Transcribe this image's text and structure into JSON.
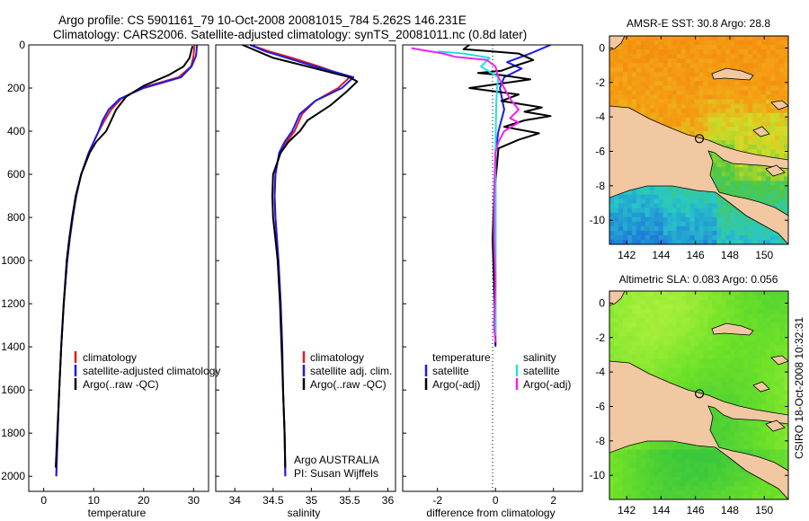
{
  "title": {
    "line1": "Argo profile: CS 5901161_79 10-Oct-2008 20081015_784 5.262S 146.231E",
    "line2": "Climatology: CARS2006. Satellite-adjusted climatology: synTS_20081011.nc (0.8d later)"
  },
  "side_stamp": "CSIRO 18-Oct-2008 10:32:31",
  "colors": {
    "climatology": "#e41a1c",
    "satellite": "#1a1aee",
    "argo": "#000000",
    "satellite_s": "#22e0e0",
    "argo_s": "#ee22ee",
    "land": "#f2c8a2",
    "coast": "#000000"
  },
  "chart_data": [
    {
      "id": "temperature",
      "type": "line",
      "xlabel": "temperature",
      "xlim": [
        -3,
        33
      ],
      "ylim": [
        0,
        2070
      ],
      "y_reversed": true,
      "xticks": [
        0,
        10,
        20,
        30
      ],
      "yticks": [
        0,
        200,
        400,
        600,
        800,
        1000,
        1200,
        1400,
        1600,
        1800,
        2000
      ],
      "legend": [
        "climatology",
        "satellite-adjusted climatology",
        "Argo(..raw -QC)"
      ],
      "series": [
        {
          "name": "climatology",
          "color_key": "climatology",
          "points": [
            [
              30.2,
              0
            ],
            [
              30.0,
              50
            ],
            [
              29.5,
              100
            ],
            [
              27,
              150
            ],
            [
              19.5,
              200
            ],
            [
              15.5,
              250
            ],
            [
              13.5,
              300
            ],
            [
              12.2,
              350
            ],
            [
              11,
              400
            ],
            [
              10,
              450
            ],
            [
              9,
              500
            ],
            [
              7.5,
              600
            ],
            [
              6.5,
              700
            ],
            [
              5.8,
              800
            ],
            [
              5.2,
              900
            ],
            [
              4.7,
              1000
            ],
            [
              4,
              1200
            ],
            [
              3.5,
              1400
            ],
            [
              3.1,
              1600
            ],
            [
              2.8,
              1800
            ],
            [
              2.5,
              2000
            ]
          ]
        },
        {
          "name": "satellite",
          "color_key": "satellite",
          "points": [
            [
              30.7,
              0
            ],
            [
              30.5,
              50
            ],
            [
              29.6,
              100
            ],
            [
              27.5,
              150
            ],
            [
              20,
              200
            ],
            [
              15.2,
              250
            ],
            [
              13,
              300
            ],
            [
              11.8,
              350
            ],
            [
              11,
              400
            ],
            [
              10,
              450
            ],
            [
              9,
              500
            ],
            [
              7.5,
              600
            ],
            [
              6.5,
              700
            ],
            [
              5.8,
              800
            ],
            [
              5.2,
              900
            ],
            [
              4.7,
              1000
            ],
            [
              4,
              1200
            ],
            [
              3.5,
              1400
            ],
            [
              3.1,
              1600
            ],
            [
              2.8,
              1800
            ],
            [
              2.5,
              2000
            ]
          ]
        },
        {
          "name": "argo",
          "color_key": "argo",
          "points": [
            [
              29.8,
              5
            ],
            [
              29.5,
              30
            ],
            [
              29.2,
              60
            ],
            [
              28,
              100
            ],
            [
              25,
              140
            ],
            [
              20,
              190
            ],
            [
              16.5,
              240
            ],
            [
              14.5,
              300
            ],
            [
              13.5,
              350
            ],
            [
              12.5,
              400
            ],
            [
              10.5,
              450
            ],
            [
              9.2,
              500
            ],
            [
              7.5,
              600
            ],
            [
              6.4,
              700
            ],
            [
              5.7,
              800
            ],
            [
              5.1,
              900
            ],
            [
              4.6,
              1000
            ],
            [
              4,
              1200
            ],
            [
              3.5,
              1400
            ],
            [
              3.1,
              1600
            ],
            [
              2.7,
              1800
            ],
            [
              2.4,
              1960
            ]
          ]
        }
      ]
    },
    {
      "id": "salinity",
      "type": "line",
      "xlabel": "salinity",
      "xlim": [
        33.75,
        36.1
      ],
      "ylim": [
        0,
        2070
      ],
      "y_reversed": true,
      "xticks": [
        34,
        34.5,
        35,
        35.5,
        36
      ],
      "yticks": [
        0,
        200,
        400,
        600,
        800,
        1000,
        1200,
        1400,
        1600,
        1800,
        2000
      ],
      "legend": [
        "climatology",
        "satellite adj. clim.",
        "Argo(..raw -QC)"
      ],
      "annotation": {
        "line1": "Argo AUSTRALIA",
        "line2": "PI: Susan Wijffels"
      },
      "series": [
        {
          "name": "climatology",
          "color_key": "climatology",
          "points": [
            [
              34.2,
              0
            ],
            [
              34.45,
              30
            ],
            [
              34.75,
              60
            ],
            [
              35.1,
              100
            ],
            [
              35.5,
              150
            ],
            [
              35.35,
              200
            ],
            [
              35.05,
              260
            ],
            [
              34.88,
              320
            ],
            [
              34.78,
              400
            ],
            [
              34.68,
              450
            ],
            [
              34.58,
              500
            ],
            [
              34.53,
              600
            ],
            [
              34.52,
              700
            ],
            [
              34.53,
              800
            ],
            [
              34.55,
              900
            ],
            [
              34.57,
              1000
            ],
            [
              34.6,
              1200
            ],
            [
              34.62,
              1400
            ],
            [
              34.63,
              1600
            ],
            [
              34.65,
              1800
            ],
            [
              34.66,
              2000
            ]
          ]
        },
        {
          "name": "satellite",
          "color_key": "satellite",
          "points": [
            [
              34.2,
              0
            ],
            [
              34.4,
              30
            ],
            [
              34.68,
              60
            ],
            [
              35.05,
              100
            ],
            [
              35.55,
              150
            ],
            [
              35.4,
              200
            ],
            [
              35.05,
              260
            ],
            [
              34.85,
              320
            ],
            [
              34.75,
              400
            ],
            [
              34.65,
              450
            ],
            [
              34.58,
              500
            ],
            [
              34.53,
              600
            ],
            [
              34.52,
              700
            ],
            [
              34.53,
              800
            ],
            [
              34.55,
              900
            ],
            [
              34.57,
              1000
            ],
            [
              34.6,
              1200
            ],
            [
              34.62,
              1400
            ],
            [
              34.63,
              1600
            ],
            [
              34.65,
              1800
            ],
            [
              34.66,
              2000
            ]
          ]
        },
        {
          "name": "argo",
          "color_key": "argo",
          "points": [
            [
              34.1,
              0
            ],
            [
              34.3,
              30
            ],
            [
              34.5,
              60
            ],
            [
              34.95,
              100
            ],
            [
              35.5,
              150
            ],
            [
              35.6,
              170
            ],
            [
              35.45,
              220
            ],
            [
              35.25,
              280
            ],
            [
              34.95,
              350
            ],
            [
              34.85,
              400
            ],
            [
              34.7,
              450
            ],
            [
              34.6,
              500
            ],
            [
              34.5,
              600
            ],
            [
              34.49,
              700
            ],
            [
              34.5,
              800
            ],
            [
              34.53,
              900
            ],
            [
              34.56,
              1000
            ],
            [
              34.59,
              1200
            ],
            [
              34.61,
              1400
            ],
            [
              34.63,
              1600
            ],
            [
              34.65,
              1800
            ],
            [
              34.66,
              1960
            ]
          ]
        }
      ]
    },
    {
      "id": "difference",
      "type": "line",
      "xlabel": "difference from climatology",
      "xlim": [
        -3.2,
        3
      ],
      "ylim": [
        0,
        2070
      ],
      "y_reversed": true,
      "xticks": [
        -2,
        0,
        2
      ],
      "yticks": [
        0,
        200,
        400,
        600,
        800,
        1000,
        1200,
        1400,
        1600,
        1800,
        2000
      ],
      "legend_headers": [
        "temperature",
        "salinity"
      ],
      "legend": [
        "satellite",
        "Argo(-adj)",
        "satellite",
        "Argo(-adj)"
      ],
      "series": [
        {
          "name": "temperature satellite",
          "color_key": "satellite",
          "points": [
            [
              1.9,
              0
            ],
            [
              1.2,
              40
            ],
            [
              0.4,
              80
            ],
            [
              0.9,
              110
            ],
            [
              0.3,
              150
            ],
            [
              0.15,
              200
            ],
            [
              0.3,
              300
            ],
            [
              0.1,
              400
            ],
            [
              0,
              500
            ],
            [
              0,
              700
            ],
            [
              0,
              1000
            ],
            [
              0,
              1400
            ]
          ]
        },
        {
          "name": "temperature Argo(-adj)",
          "color_key": "argo",
          "points": [
            [
              -0.9,
              0
            ],
            [
              -1.1,
              20
            ],
            [
              -0.1,
              30
            ],
            [
              0.8,
              40
            ],
            [
              1.3,
              70
            ],
            [
              0.6,
              100
            ],
            [
              0.2,
              120
            ],
            [
              -0.6,
              130
            ],
            [
              0.2,
              140
            ],
            [
              1.2,
              160
            ],
            [
              -0.9,
              200
            ],
            [
              0.8,
              230
            ],
            [
              0.2,
              260
            ],
            [
              1.6,
              290
            ],
            [
              1.0,
              310
            ],
            [
              1.9,
              330
            ],
            [
              1.0,
              350
            ],
            [
              0.3,
              380
            ],
            [
              1.5,
              410
            ],
            [
              0.8,
              440
            ],
            [
              0.1,
              480
            ],
            [
              0.05,
              560
            ],
            [
              -0.05,
              700
            ],
            [
              -0.1,
              900
            ],
            [
              -0.05,
              1100
            ],
            [
              -0.02,
              1300
            ],
            [
              0,
              1390
            ]
          ]
        },
        {
          "name": "salinity satellite",
          "color_key": "satellite_s",
          "points": [
            [
              -2.0,
              30
            ],
            [
              -1.1,
              40
            ],
            [
              -0.2,
              60
            ],
            [
              -0.5,
              100
            ],
            [
              0.1,
              150
            ],
            [
              0.05,
              200
            ],
            [
              0.02,
              300
            ],
            [
              0,
              500
            ],
            [
              0,
              1000
            ],
            [
              0,
              1350
            ]
          ]
        },
        {
          "name": "salinity Argo(-adj)",
          "color_key": "argo_s",
          "points": [
            [
              -2.9,
              15
            ],
            [
              -1.8,
              40
            ],
            [
              -1.4,
              55
            ],
            [
              -0.3,
              70
            ],
            [
              0,
              100
            ],
            [
              0.1,
              150
            ],
            [
              0.3,
              200
            ],
            [
              0.5,
              250
            ],
            [
              0.8,
              300
            ],
            [
              0.5,
              340
            ],
            [
              0.8,
              360
            ],
            [
              0.3,
              400
            ],
            [
              0.1,
              450
            ],
            [
              0,
              500
            ],
            [
              -0.05,
              700
            ],
            [
              -0.05,
              900
            ],
            [
              0,
              1100
            ],
            [
              -0.05,
              1300
            ],
            [
              0,
              1380
            ]
          ]
        }
      ]
    },
    {
      "id": "sst_map",
      "type": "heatmap",
      "title": "AMSR-E SST: 30.8 Argo: 28.8",
      "xlim": [
        141,
        151.4
      ],
      "ylim": [
        -11.4,
        0.7
      ],
      "xticks": [
        142,
        144,
        146,
        148,
        150
      ],
      "yticks": [
        0,
        -2,
        -4,
        -6,
        -8,
        -10
      ],
      "argo_position": {
        "lon": 146.23,
        "lat": -5.26
      }
    },
    {
      "id": "sla_map",
      "type": "heatmap",
      "title": "Altimetric SLA: 0.083 Argo: 0.056",
      "xlim": [
        141,
        151.4
      ],
      "ylim": [
        -11.4,
        0.7
      ],
      "xticks": [
        142,
        144,
        146,
        148,
        150
      ],
      "yticks": [
        0,
        -2,
        -4,
        -6,
        -8,
        -10
      ],
      "argo_position": {
        "lon": 146.23,
        "lat": -5.26
      }
    }
  ]
}
